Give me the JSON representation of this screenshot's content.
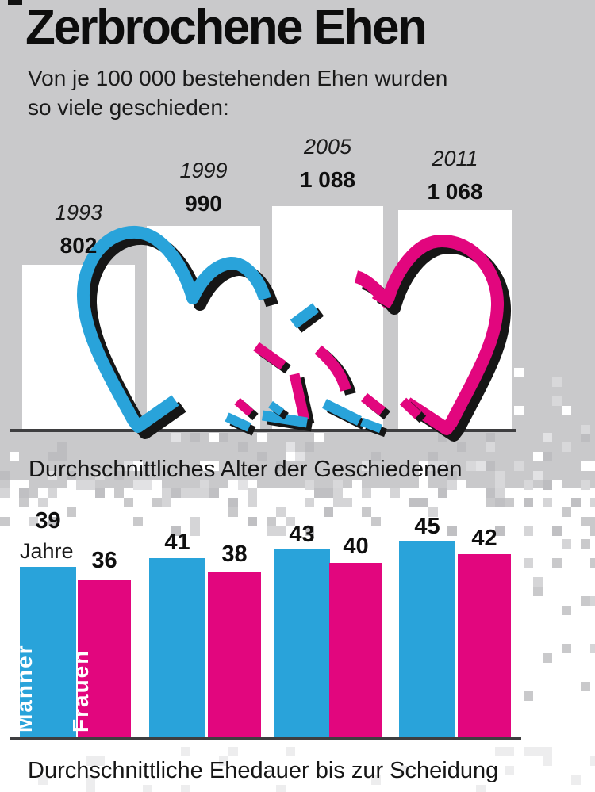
{
  "page": {
    "title": "Zerbrochene Ehen",
    "subtitle_lines": [
      "Von je 100 000 bestehenden Ehen wurden",
      "so viele geschieden:"
    ]
  },
  "sections": {
    "age_heading": "Durchschnittliches Alter der Geschiedenen",
    "duration_heading": "Durchschnittliche Ehedauer bis zur Scheidung"
  },
  "colors": {
    "background_gray": "#c9c9cb",
    "bar_white": "#ffffff",
    "men_blue": "#29a3da",
    "women_pink": "#e2067e",
    "baseline_dark": "#3e3e40",
    "shadow_black": "#161616"
  },
  "chart_data": [
    {
      "id": "divorces-per-100000-marriages",
      "type": "bar",
      "title": "Von je 100 000 bestehenden Ehen wurden so viele geschieden",
      "categories": [
        "1993",
        "1999",
        "2005",
        "2011"
      ],
      "values": [
        802,
        990,
        1088,
        1068
      ],
      "value_labels": [
        "802",
        "990",
        "1 088",
        "1 068"
      ],
      "ylim": [
        0,
        1150
      ],
      "bar_color": "#ffffff",
      "legend_position": "none",
      "grid": false,
      "annotation": "broken-heart illustration over white bars on gray background"
    },
    {
      "id": "average-age-of-divorcees",
      "type": "bar",
      "title": "Durchschnittliches Alter der Geschiedenen",
      "unit_label": "Jahre",
      "series": [
        {
          "name": "Männer",
          "color": "#29a3da",
          "values": [
            39,
            41,
            43,
            45
          ]
        },
        {
          "name": "Frauen",
          "color": "#e2067e",
          "values": [
            36,
            38,
            40,
            42
          ]
        }
      ],
      "ylim": [
        0,
        46
      ],
      "legend_position": "inside-first-bars",
      "grid": false
    }
  ]
}
